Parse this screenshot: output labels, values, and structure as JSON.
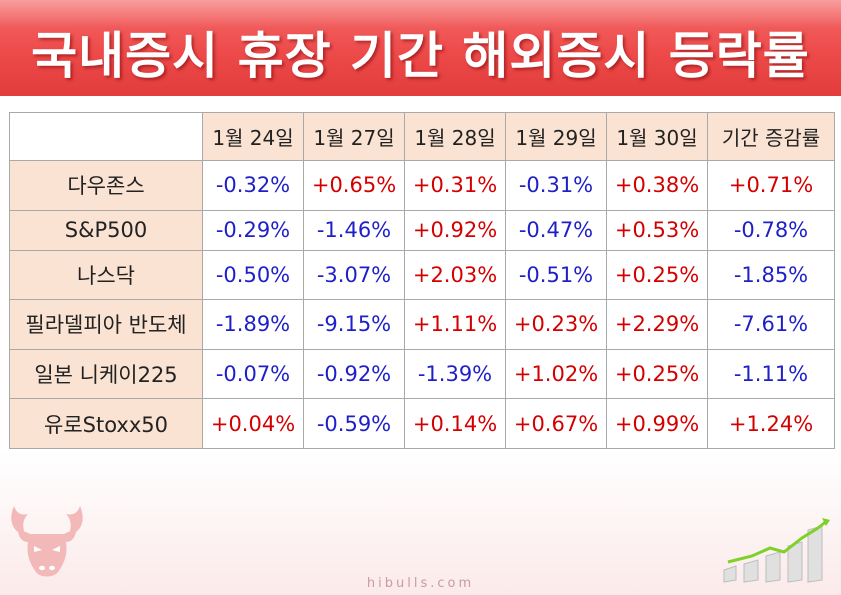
{
  "title": "국내증시 휴장 기간 해외증시 등락률",
  "colors": {
    "up": "#d40000",
    "down": "#1f1fc8",
    "banner": "#ee4a4a",
    "header_bg": "#fbe3d3"
  },
  "table": {
    "corner": "",
    "columns": [
      "1월 24일",
      "1월 27일",
      "1월 28일",
      "1월 29일",
      "1월 30일",
      "기간 증감률"
    ],
    "rows": [
      {
        "name": "다우존스",
        "values": [
          "-0.32%",
          "+0.65%",
          "+0.31%",
          "-0.31%",
          "+0.38%"
        ],
        "total": "+0.71%"
      },
      {
        "name": "S&P500",
        "values": [
          "-0.29%",
          "-1.46%",
          "+0.92%",
          "-0.47%",
          "+0.53%"
        ],
        "total": "-0.78%"
      },
      {
        "name": "나스닥",
        "values": [
          "-0.50%",
          "-3.07%",
          "+2.03%",
          "-0.51%",
          "+0.25%"
        ],
        "total": "-1.85%"
      },
      {
        "name": "필라델피아 반도체",
        "values": [
          "-1.89%",
          "-9.15%",
          "+1.11%",
          "+0.23%",
          "+2.29%"
        ],
        "total": "-7.61%"
      },
      {
        "name": "일본 니케이225",
        "values": [
          "-0.07%",
          "-0.92%",
          "-1.39%",
          "+1.02%",
          "+0.25%"
        ],
        "total": "-1.11%"
      },
      {
        "name": "유로Stoxx50",
        "values": [
          "+0.04%",
          "-0.59%",
          "+0.14%",
          "+0.67%",
          "+0.99%"
        ],
        "total": "+1.24%"
      }
    ]
  },
  "footer": {
    "site": "hibulls.com"
  },
  "icons": {
    "logo": "bull-head-icon",
    "decoration": "rising-bar-chart-icon"
  }
}
